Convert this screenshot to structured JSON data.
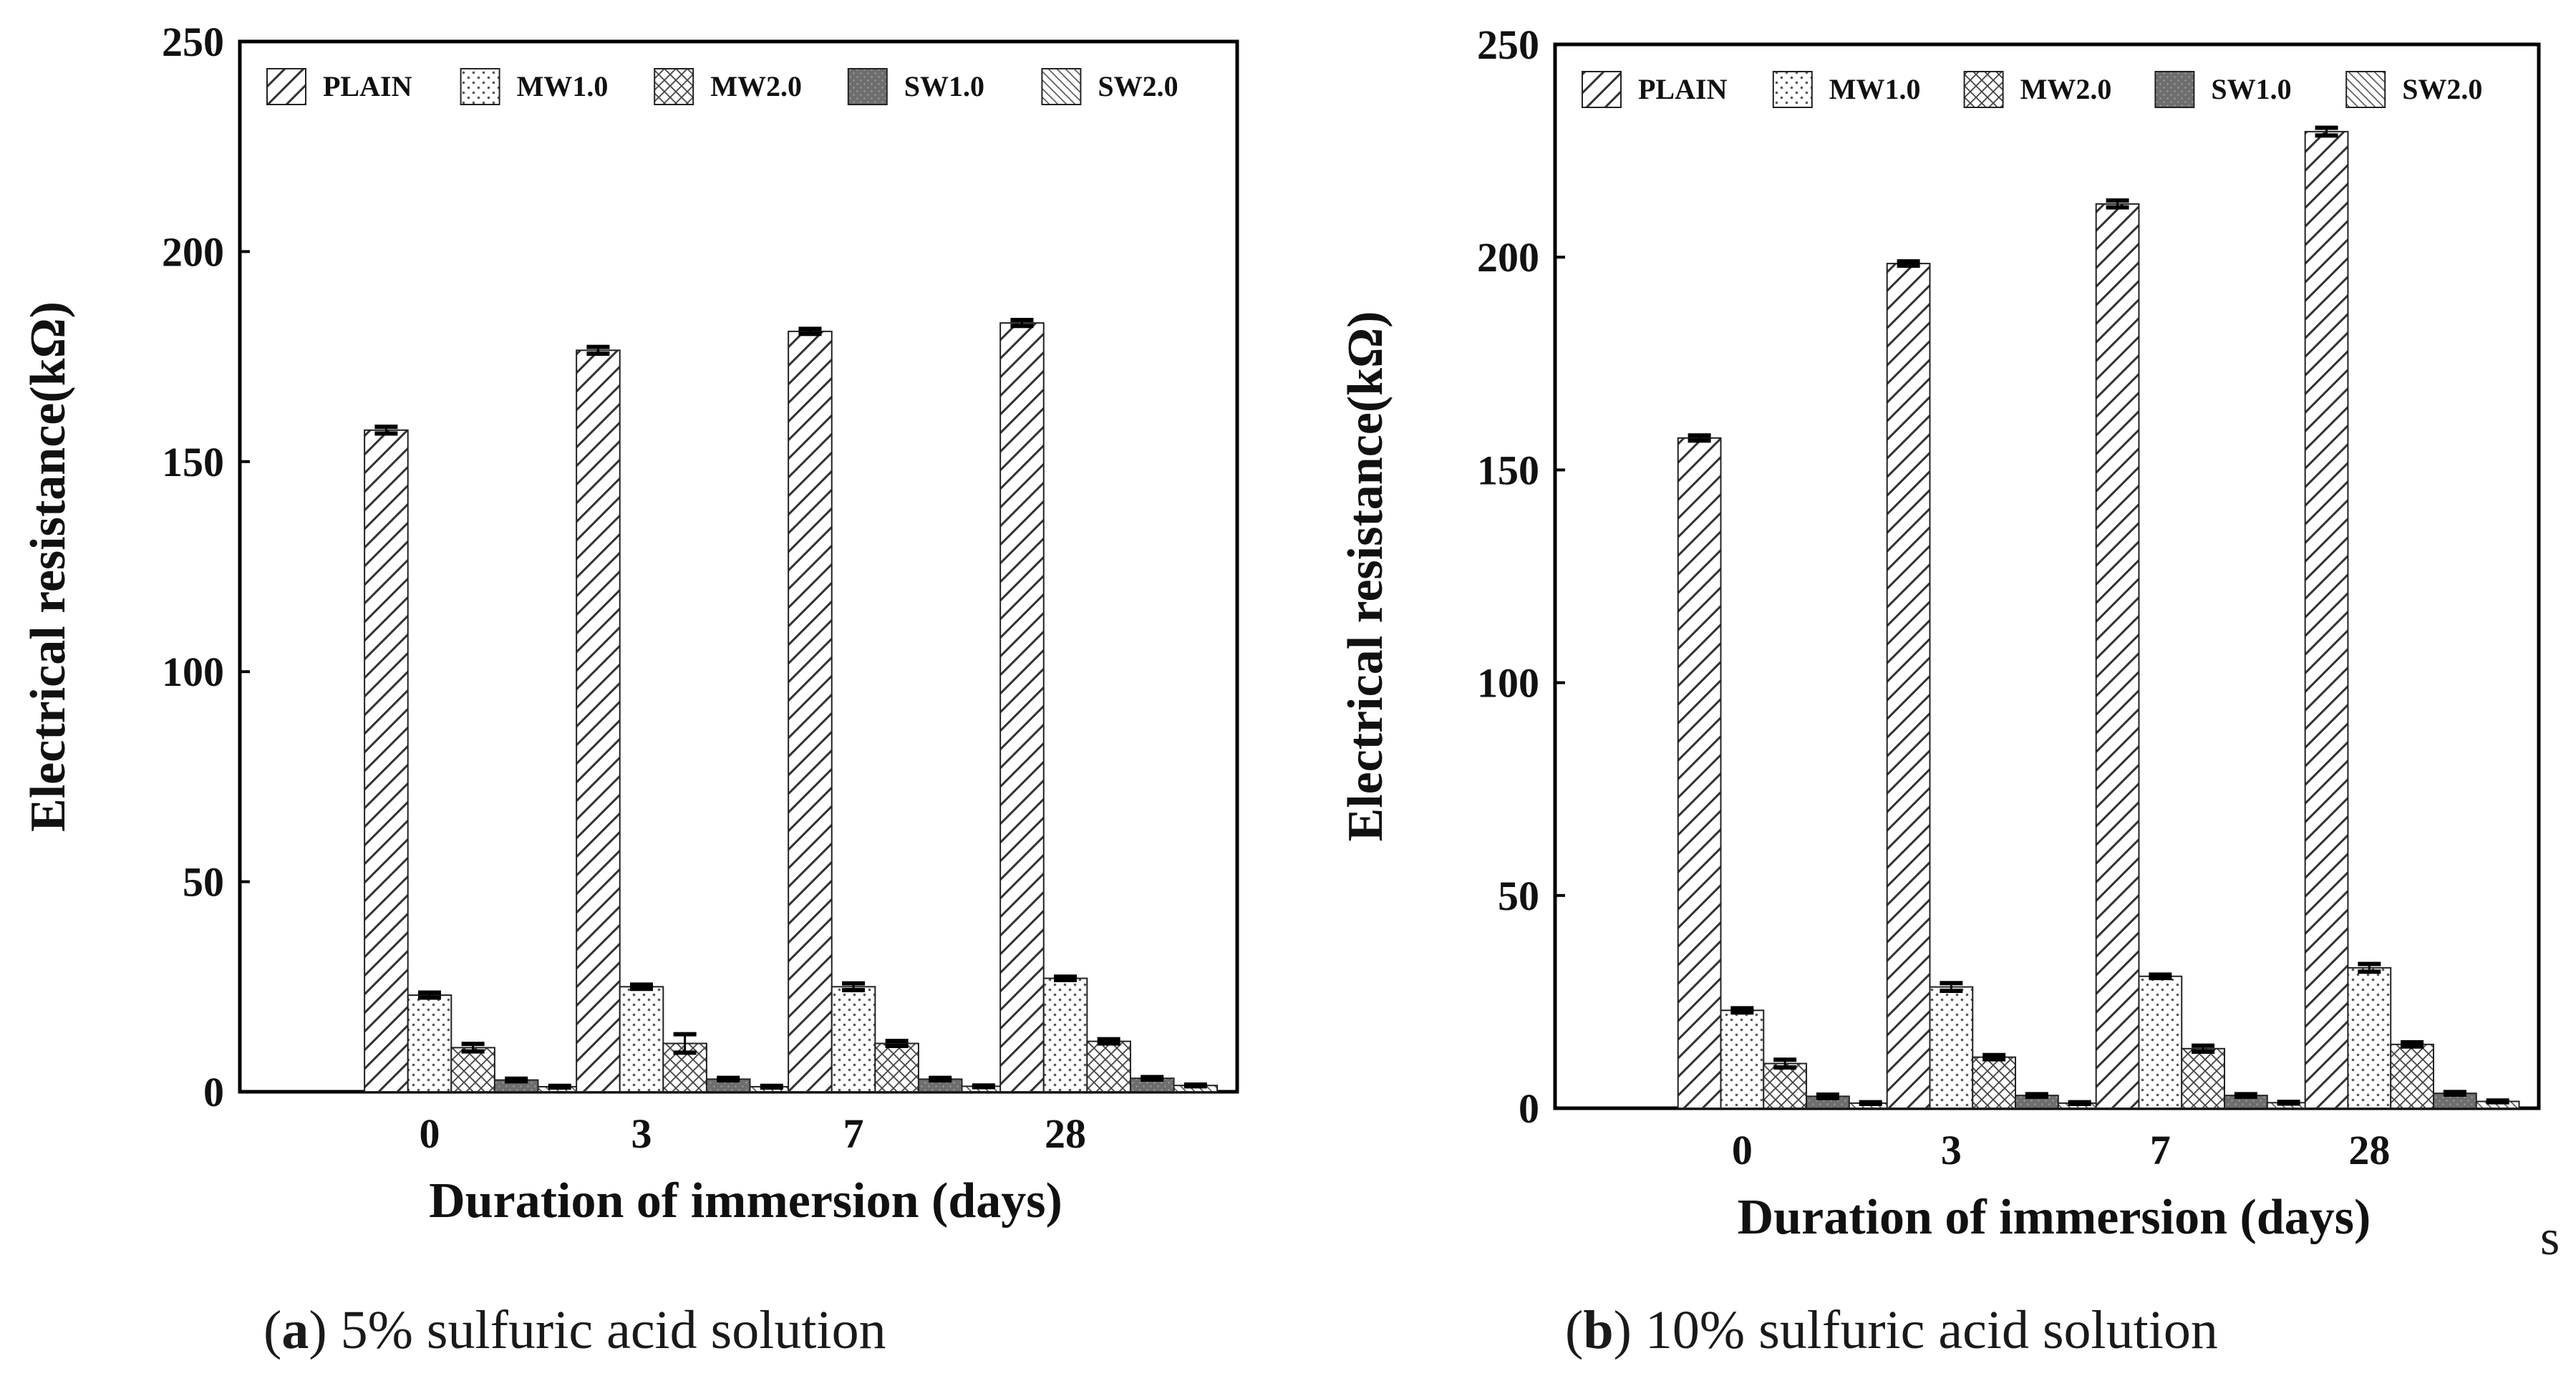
{
  "patterns": {
    "PLAIN": "diag-wide",
    "MW1.0": "dots",
    "MW2.0": "crosshatch",
    "SW1.0": "dark-dots",
    "SW2.0": "diag-fine"
  },
  "stray_text": "s",
  "chart_data": [
    {
      "type": "bar",
      "caption": {
        "letter": "a",
        "text": "5% sulfuric acid solution"
      },
      "xlabel": "Duration of immersion (days)",
      "ylabel": "Electrical resistance(kΩ)",
      "categories": [
        "0",
        "3",
        "7",
        "28"
      ],
      "ylim": [
        0,
        250
      ],
      "yticks": [
        "0",
        "50",
        "100",
        "150",
        "200",
        "250"
      ],
      "legend": [
        "PLAIN",
        "MW1.0",
        "MW2.0",
        "SW1.0",
        "SW2.0"
      ],
      "legend_position": "top",
      "series": [
        {
          "name": "PLAIN",
          "values": [
            157.5,
            176.5,
            181,
            183
          ],
          "errors": [
            0.8,
            0.8,
            0.6,
            0.7
          ]
        },
        {
          "name": "MW1.0",
          "values": [
            23,
            25,
            25,
            27
          ],
          "errors": [
            0.6,
            0.5,
            0.8,
            0.4
          ]
        },
        {
          "name": "MW2.0",
          "values": [
            10.5,
            11.5,
            11.5,
            12
          ],
          "errors": [
            0.9,
            2.2,
            0.6,
            0.5
          ]
        },
        {
          "name": "SW1.0",
          "values": [
            2.8,
            3,
            3,
            3.2
          ],
          "errors": [
            0.3,
            0.3,
            0.3,
            0.3
          ]
        },
        {
          "name": "SW2.0",
          "values": [
            1.2,
            1.2,
            1.3,
            1.5
          ],
          "errors": [
            0.2,
            0.2,
            0.2,
            0.2
          ]
        }
      ]
    },
    {
      "type": "bar",
      "caption": {
        "letter": "b",
        "text": "10% sulfuric acid solution"
      },
      "xlabel": "Duration of immersion (days)",
      "ylabel": "Electrical resistance(kΩ)",
      "categories": [
        "0",
        "3",
        "7",
        "28"
      ],
      "ylim": [
        0,
        250
      ],
      "yticks": [
        "0",
        "50",
        "100",
        "150",
        "200",
        "250"
      ],
      "legend": [
        "PLAIN",
        "MW1.0",
        "MW2.0",
        "SW1.0",
        "SW2.0"
      ],
      "legend_position": "top",
      "series": [
        {
          "name": "PLAIN",
          "values": [
            157.5,
            198.5,
            212.5,
            229.5
          ],
          "errors": [
            0.6,
            0.5,
            0.8,
            0.9
          ]
        },
        {
          "name": "MW1.0",
          "values": [
            23,
            28.5,
            31,
            33
          ],
          "errors": [
            0.5,
            0.9,
            0.4,
            0.9
          ]
        },
        {
          "name": "MW2.0",
          "values": [
            10.5,
            12,
            14,
            15
          ],
          "errors": [
            0.9,
            0.5,
            0.7,
            0.5
          ]
        },
        {
          "name": "SW1.0",
          "values": [
            2.8,
            3,
            3,
            3.5
          ],
          "errors": [
            0.4,
            0.3,
            0.3,
            0.3
          ]
        },
        {
          "name": "SW2.0",
          "values": [
            1.2,
            1.2,
            1.3,
            1.6
          ],
          "errors": [
            0.2,
            0.2,
            0.2,
            0.2
          ]
        }
      ]
    }
  ]
}
